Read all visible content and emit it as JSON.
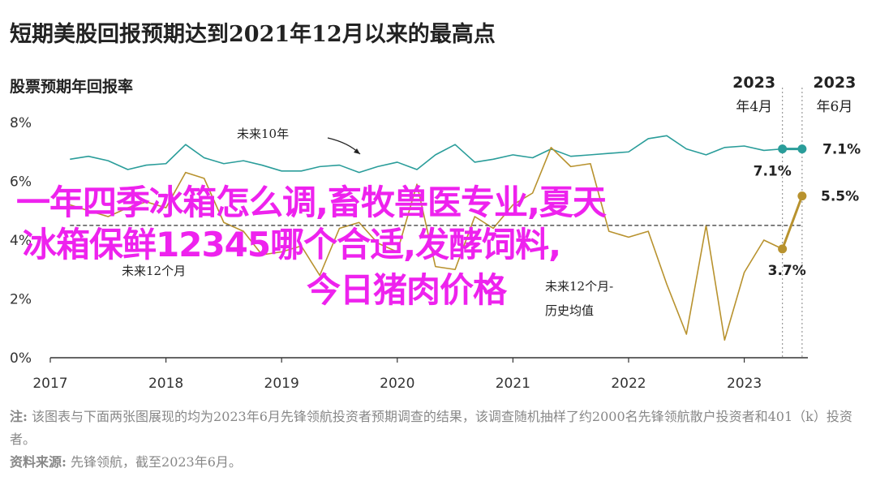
{
  "title": "短期美股回报预期达到2021年12月以来的最高点",
  "chart_data": {
    "type": "line",
    "subtitle": "股票预期年回报率",
    "xlabel": "",
    "ylabel": "",
    "ylim": [
      0,
      8
    ],
    "xlim": [
      2017.0,
      2023.55
    ],
    "yticks": [
      "0%",
      "2%",
      "4%",
      "6%",
      "8%"
    ],
    "xticks": [
      "2017",
      "2018",
      "2019",
      "2020",
      "2021",
      "2022",
      "2023"
    ],
    "grid": false,
    "series": [
      {
        "name": "未来10年",
        "color": "#2a9d9a",
        "x": [
          2017.17,
          2017.33,
          2017.5,
          2017.67,
          2017.83,
          2018.0,
          2018.17,
          2018.33,
          2018.5,
          2018.67,
          2018.83,
          2019.0,
          2019.17,
          2019.33,
          2019.5,
          2019.67,
          2019.83,
          2020.0,
          2020.17,
          2020.33,
          2020.5,
          2020.67,
          2020.83,
          2021.0,
          2021.17,
          2021.33,
          2021.5,
          2021.67,
          2021.83,
          2022.0,
          2022.17,
          2022.33,
          2022.5,
          2022.67,
          2022.83,
          2023.0,
          2023.17,
          2023.33,
          2023.5
        ],
        "values": [
          6.75,
          6.85,
          6.7,
          6.4,
          6.55,
          6.6,
          7.25,
          6.8,
          6.6,
          6.7,
          6.55,
          6.35,
          6.35,
          6.5,
          6.55,
          6.3,
          6.5,
          6.65,
          6.4,
          6.9,
          7.25,
          6.65,
          6.75,
          6.9,
          6.8,
          7.1,
          6.85,
          6.9,
          6.95,
          7.0,
          7.45,
          7.55,
          7.1,
          6.9,
          7.15,
          7.2,
          7.05,
          7.1,
          7.1
        ]
      },
      {
        "name": "未来12个月",
        "color": "#b8922e",
        "x": [
          2017.17,
          2017.33,
          2017.5,
          2017.67,
          2017.83,
          2018.0,
          2018.17,
          2018.33,
          2018.5,
          2018.67,
          2018.83,
          2019.0,
          2019.17,
          2019.33,
          2019.5,
          2019.67,
          2019.83,
          2020.0,
          2020.17,
          2020.33,
          2020.5,
          2020.67,
          2020.83,
          2021.0,
          2021.17,
          2021.33,
          2021.5,
          2021.67,
          2021.83,
          2022.0,
          2022.17,
          2022.33,
          2022.5,
          2022.67,
          2022.83,
          2023.0,
          2023.17,
          2023.33,
          2023.5
        ],
        "values": [
          5.2,
          5.0,
          4.8,
          5.1,
          5.3,
          5.1,
          6.3,
          6.1,
          4.6,
          4.3,
          3.5,
          3.6,
          3.8,
          2.8,
          4.4,
          4.6,
          3.9,
          3.6,
          5.9,
          3.1,
          3.0,
          4.8,
          4.4,
          5.2,
          5.6,
          7.15,
          6.5,
          6.6,
          4.3,
          4.1,
          4.3,
          2.5,
          0.8,
          4.5,
          0.6,
          2.9,
          4.0,
          3.7,
          5.5
        ]
      },
      {
        "name": "未来12个月-历史均值",
        "style": "dashed",
        "color": "#555555",
        "x": [
          2017.17,
          2023.5
        ],
        "values": [
          4.5,
          4.5
        ]
      }
    ],
    "annotations": [
      {
        "text": "未来10年",
        "series": "未来10年"
      },
      {
        "text": "未来12个月",
        "series": "未来12个月"
      },
      {
        "text": "未来12个月-",
        "line2": "历史均值"
      }
    ],
    "highlights": {
      "april": {
        "year": "2023",
        "month": "年4月",
        "x": 2023.33,
        "ten_year": 7.1,
        "twelve_month": 3.7,
        "ten_label": "7.1%",
        "twelve_label": "3.7%"
      },
      "june": {
        "year": "2023",
        "month": "年6月",
        "x": 2023.5,
        "ten_year": 7.1,
        "twelve_month": 5.5,
        "ten_label": "7.1%",
        "twelve_label": "5.5%"
      }
    }
  },
  "overlay": {
    "line1": "一年四季冰箱怎么调,畜牧兽医专业,夏天",
    "line2": "冰箱保鲜12345哪个合适,发酵饲料,",
    "line3": "今日猪肉价格"
  },
  "footer": {
    "note_label": "注:",
    "note_text": " 该图表与下面两张图展现的均为2023年6月先锋领航投资者预期调查的结果，该调查随机抽样了约2000名先锋领航散户投资者和401（k）投资者。",
    "source_label": "资料来源:",
    "source_text": " 先锋领航，截至2023年6月。"
  }
}
